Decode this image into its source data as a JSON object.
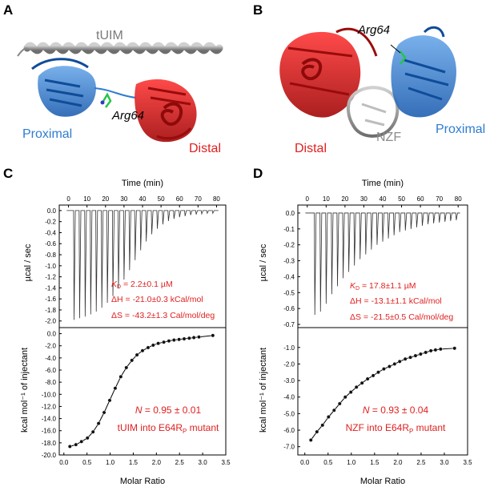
{
  "colors": {
    "red": "#e02020",
    "blue": "#2f7ccf",
    "gray": "#8c8c8c",
    "black": "#000000"
  },
  "panels": {
    "A": {
      "letter": "A",
      "labels": {
        "tuim": "tUIM",
        "arg": "Arg64",
        "proximal": "Proximal",
        "distal": "Distal"
      }
    },
    "B": {
      "letter": "B",
      "labels": {
        "arg": "Arg64",
        "distal": "Distal",
        "nzf": "NZF",
        "proximal": "Proximal"
      }
    },
    "C": {
      "letter": "C",
      "time_title": "Time (min)",
      "top_ylabel": "µcal / sec",
      "bottom_ylabel": "kcal mol⁻¹ of injectant",
      "xlabel": "Molar Ratio",
      "kd_symbol": "K",
      "kd_sub": "D",
      "kd_value": " = 2.2±0.1 µM",
      "dh": "ΔH = -21.0±0.3 kCal/mol",
      "ds": "ΔS = -43.2±1.3 Cal/mol/deg",
      "n_symbol": "N",
      "n_value": " = 0.95 ± 0.01",
      "sample_main": "tUIM into E64R",
      "sample_sub": "P",
      "sample_tail": " mutant"
    },
    "D": {
      "letter": "D",
      "time_title": "Time (min)",
      "top_ylabel": "µcal / sec",
      "bottom_ylabel": "kcal mol⁻¹ of injectant",
      "xlabel": "Molar Ratio",
      "kd_symbol": "K",
      "kd_sub": "D",
      "kd_value": " = 17.8±1.1 µM",
      "dh": "ΔH = -13.1±1.1 kCal/mol",
      "ds": "ΔS = -21.5±0.5 Cal/mol/deg",
      "n_symbol": "N",
      "n_value": " = 0.93 ± 0.04",
      "sample_main": "NZF into E64R",
      "sample_sub": "P",
      "sample_tail": " mutant"
    }
  },
  "chart_data": [
    {
      "panel": "C-top",
      "type": "line",
      "x_title": "Time (min)",
      "ylabel": "µcal / sec",
      "xlim": [
        -5,
        85
      ],
      "ylim": [
        -2.12,
        0.1
      ],
      "xticks": [
        0,
        10,
        20,
        30,
        40,
        50,
        60,
        70,
        80
      ],
      "yticks": [
        0.0,
        -0.2,
        -0.4,
        -0.6,
        -0.8,
        -1.0,
        -1.2,
        -1.4,
        -1.6,
        -1.8,
        -2.0
      ],
      "injections_min": [
        3,
        6,
        9,
        12,
        15,
        18,
        21,
        24,
        27,
        30,
        33,
        36,
        39,
        42,
        45,
        48,
        51,
        54,
        57,
        60,
        63,
        66,
        69,
        72,
        75,
        78
      ],
      "peak_values": [
        -1.98,
        -1.95,
        -1.92,
        -1.88,
        -1.83,
        -1.76,
        -1.67,
        -1.55,
        -1.41,
        -1.25,
        -1.08,
        -0.9,
        -0.72,
        -0.56,
        -0.43,
        -0.33,
        -0.25,
        -0.19,
        -0.15,
        -0.12,
        -0.1,
        -0.08,
        -0.07,
        -0.06,
        -0.05,
        -0.05
      ]
    },
    {
      "panel": "C-bottom",
      "type": "scatter",
      "xlabel": "Molar Ratio",
      "ylabel": "kcal mol⁻¹ of injectant",
      "xlim": [
        -0.1,
        3.5
      ],
      "ylim": [
        -20.0,
        1.0
      ],
      "xticks": [
        0.0,
        0.5,
        1.0,
        1.5,
        2.0,
        2.5,
        3.0,
        3.5
      ],
      "yticks": [
        0.0,
        -2.0,
        -4.0,
        -6.0,
        -8.0,
        -10.0,
        -12.0,
        -14.0,
        -16.0,
        -18.0,
        -20.0
      ],
      "x": [
        0.13,
        0.26,
        0.38,
        0.51,
        0.63,
        0.75,
        0.87,
        0.99,
        1.11,
        1.23,
        1.35,
        1.47,
        1.58,
        1.7,
        1.82,
        1.93,
        2.04,
        2.16,
        2.27,
        2.38,
        2.49,
        2.6,
        2.71,
        2.81,
        2.92,
        3.22
      ],
      "y": [
        -18.6,
        -18.3,
        -17.8,
        -17.2,
        -16.2,
        -14.8,
        -13.0,
        -11.0,
        -9.0,
        -7.1,
        -5.6,
        -4.4,
        -3.5,
        -2.8,
        -2.3,
        -1.9,
        -1.6,
        -1.4,
        -1.2,
        -1.05,
        -0.95,
        -0.85,
        -0.75,
        -0.65,
        -0.55,
        -0.3
      ]
    },
    {
      "panel": "D-top",
      "type": "line",
      "x_title": "Time (min)",
      "ylabel": "µcal / sec",
      "xlim": [
        -5,
        85
      ],
      "ylim": [
        -0.72,
        0.05
      ],
      "xticks": [
        0,
        10,
        20,
        30,
        40,
        50,
        60,
        70,
        80
      ],
      "yticks": [
        0.0,
        -0.1,
        -0.2,
        -0.3,
        -0.4,
        -0.5,
        -0.6,
        -0.7
      ],
      "injections_min": [
        4,
        7,
        10,
        13,
        16,
        19,
        22,
        25,
        28,
        31,
        34,
        37,
        40,
        43,
        46,
        49,
        52,
        55,
        58,
        61,
        64,
        67,
        70,
        73,
        76,
        79
      ],
      "peak_values": [
        -0.64,
        -0.62,
        -0.57,
        -0.51,
        -0.46,
        -0.41,
        -0.37,
        -0.33,
        -0.29,
        -0.26,
        -0.23,
        -0.2,
        -0.18,
        -0.16,
        -0.14,
        -0.12,
        -0.11,
        -0.1,
        -0.09,
        -0.08,
        -0.07,
        -0.065,
        -0.06,
        -0.055,
        -0.05,
        -0.045
      ]
    },
    {
      "panel": "D-bottom",
      "type": "scatter",
      "xlabel": "Molar Ratio",
      "ylabel": "kcal mol⁻¹ of injectant",
      "xlim": [
        -0.15,
        3.5
      ],
      "ylim": [
        -7.5,
        0.2
      ],
      "xticks": [
        0.0,
        0.5,
        1.0,
        1.5,
        2.0,
        2.5,
        3.0,
        3.5
      ],
      "yticks": [
        -1.0,
        -2.0,
        -3.0,
        -4.0,
        -5.0,
        -6.0,
        -7.0
      ],
      "x": [
        0.13,
        0.26,
        0.38,
        0.51,
        0.63,
        0.75,
        0.87,
        0.99,
        1.11,
        1.23,
        1.35,
        1.47,
        1.58,
        1.7,
        1.82,
        1.93,
        2.04,
        2.16,
        2.27,
        2.38,
        2.49,
        2.6,
        2.71,
        2.81,
        2.92,
        3.22
      ],
      "y": [
        -6.6,
        -6.1,
        -5.7,
        -5.2,
        -4.8,
        -4.4,
        -4.0,
        -3.7,
        -3.4,
        -3.15,
        -2.9,
        -2.7,
        -2.5,
        -2.3,
        -2.15,
        -2.0,
        -1.85,
        -1.7,
        -1.6,
        -1.5,
        -1.4,
        -1.3,
        -1.2,
        -1.15,
        -1.1,
        -1.05
      ]
    }
  ]
}
